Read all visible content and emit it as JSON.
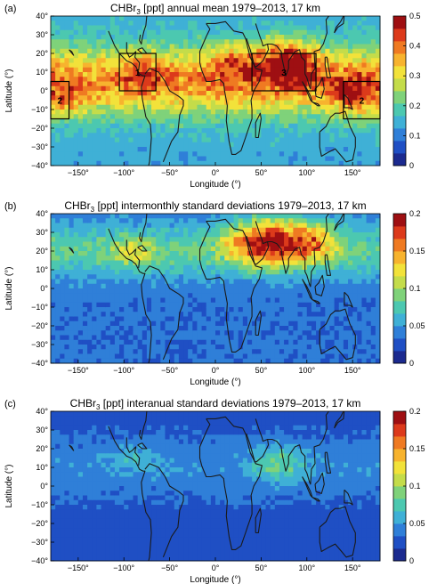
{
  "colormap": [
    "#1b2a8f",
    "#1f4fc4",
    "#2f7fd8",
    "#3fb0d6",
    "#4cc8b0",
    "#7fd27a",
    "#c4dc4a",
    "#f2e23a",
    "#f7b32e",
    "#ef7a22",
    "#dc3a1b",
    "#9e0f12"
  ],
  "land_color": "#1a1a1a",
  "chart_data": [
    {
      "type": "heatmap",
      "panel_label": "(a)",
      "title_parts": [
        "CHBr",
        "3",
        " [ppt] annual mean 1979–2013, 17 km"
      ],
      "xlabel": "Longitude (°)",
      "ylabel": "Latitude (°)",
      "xlim": [
        -180,
        180
      ],
      "ylim": [
        -40,
        40
      ],
      "xticks": [
        -150,
        -100,
        -50,
        0,
        50,
        100,
        150
      ],
      "xtick_labels": [
        "−150°",
        "−100°",
        "−50°",
        "0°",
        "50°",
        "100°",
        "150°"
      ],
      "yticks": [
        40,
        30,
        20,
        10,
        0,
        -10,
        -20,
        -30,
        -40
      ],
      "ytick_labels": [
        "40°",
        "30°",
        "20°",
        "10°",
        "0°",
        "−10°",
        "−20°",
        "−30°",
        "−40°"
      ],
      "colorbar": {
        "min": 0,
        "max": 0.5,
        "ticks": [
          0.5,
          0.4,
          0.3,
          0.2,
          0.1,
          0
        ],
        "labels": [
          "0.5",
          "0.4",
          "0.3",
          "0.2",
          "0.1",
          "0"
        ]
      },
      "field": {
        "base": 0.14,
        "peak": 0.24,
        "lat_center": 5,
        "lat_width": 18,
        "blobs": [
          {
            "lon": 80,
            "lat": 15,
            "amp": 0.24,
            "rlon": 30,
            "rlat": 12
          },
          {
            "lon": 20,
            "lat": 15,
            "amp": 0.12,
            "rlon": 25,
            "rlat": 10
          },
          {
            "lon": 150,
            "lat": -3,
            "amp": 0.14,
            "rlon": 25,
            "rlat": 10
          },
          {
            "lon": -80,
            "lat": 10,
            "amp": 0.09,
            "rlon": 20,
            "rlat": 10
          },
          {
            "lon": -165,
            "lat": -5,
            "amp": 0.08,
            "rlon": 20,
            "rlat": 10
          }
        ]
      },
      "regions": [
        {
          "label": "1",
          "lon": [
            -105,
            -65
          ],
          "lat": [
            0,
            20
          ]
        },
        {
          "label": "2",
          "lon": [
            -180,
            -160
          ],
          "lat": [
            -15,
            5
          ]
        },
        {
          "label": "2",
          "lon": [
            140,
            180
          ],
          "lat": [
            -15,
            5
          ]
        },
        {
          "label": "3",
          "lon": [
            40,
            110
          ],
          "lat": [
            0,
            20
          ]
        }
      ]
    },
    {
      "type": "heatmap",
      "panel_label": "(b)",
      "title_parts": [
        "CHBr",
        "3",
        " [ppt] intermonthly standard deviations 1979–2013, 17 km"
      ],
      "xlabel": "Longitude (°)",
      "ylabel": "Latitude (°)",
      "xlim": [
        -180,
        180
      ],
      "ylim": [
        -40,
        40
      ],
      "xticks": [
        -150,
        -100,
        -50,
        0,
        50,
        100,
        150
      ],
      "xtick_labels": [
        "−150°",
        "−100°",
        "−50°",
        "0°",
        "50°",
        "100°",
        "150°"
      ],
      "yticks": [
        40,
        30,
        20,
        10,
        0,
        -10,
        -20,
        -30,
        -40
      ],
      "ytick_labels": [
        "40°",
        "30°",
        "20°",
        "10°",
        "0°",
        "−10°",
        "−20°",
        "−30°",
        "−40°"
      ],
      "colorbar": {
        "min": 0,
        "max": 0.2,
        "ticks": [
          0.2,
          0.15,
          0.1,
          0.05,
          0
        ],
        "labels": [
          "0.2",
          "0.15",
          "0.1",
          "0.05",
          "0"
        ]
      },
      "field": {
        "base": 0.035,
        "peak": 0.045,
        "lat_center": 20,
        "lat_width": 15,
        "blobs": [
          {
            "lon": 60,
            "lat": 25,
            "amp": 0.13,
            "rlon": 45,
            "rlat": 12
          },
          {
            "lon": 110,
            "lat": 25,
            "amp": 0.05,
            "rlon": 25,
            "rlat": 10
          },
          {
            "lon": -90,
            "lat": 20,
            "amp": 0.04,
            "rlon": 25,
            "rlat": 8
          }
        ]
      }
    },
    {
      "type": "heatmap",
      "panel_label": "(c)",
      "title_parts": [
        "CHBr",
        "3",
        " [ppt] interanual standard deviations 1979–2013, 17 km"
      ],
      "xlabel": "Longitude (°)",
      "ylabel": "Latitude (°)",
      "xlim": [
        -180,
        180
      ],
      "ylim": [
        -40,
        40
      ],
      "xticks": [
        -150,
        -100,
        -50,
        0,
        50,
        100,
        150
      ],
      "xtick_labels": [
        "−150°",
        "−100°",
        "−50°",
        "0°",
        "50°",
        "100°",
        "150°"
      ],
      "yticks": [
        40,
        30,
        20,
        10,
        0,
        -10,
        -20,
        -30,
        -40
      ],
      "ytick_labels": [
        "40°",
        "30°",
        "20°",
        "10°",
        "0°",
        "−10°",
        "−20°",
        "−30°",
        "−40°"
      ],
      "colorbar": {
        "min": 0,
        "max": 0.2,
        "ticks": [
          0.2,
          0.15,
          0.1,
          0.05,
          0
        ],
        "labels": [
          "0.2",
          "0.15",
          "0.1",
          "0.05",
          "0"
        ]
      },
      "field": {
        "base": 0.025,
        "peak": 0.02,
        "lat_center": 10,
        "lat_width": 18,
        "blobs": [
          {
            "lon": 70,
            "lat": 12,
            "amp": 0.04,
            "rlon": 30,
            "rlat": 10
          },
          {
            "lon": -90,
            "lat": 15,
            "amp": 0.02,
            "rlon": 25,
            "rlat": 8
          }
        ]
      }
    }
  ]
}
